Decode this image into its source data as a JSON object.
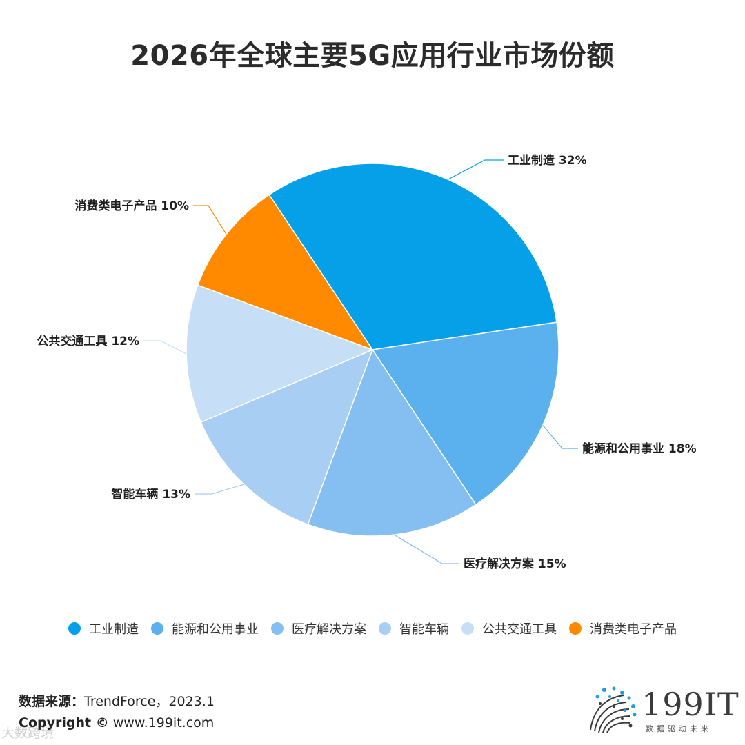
{
  "title": "2026年全球主要5G应用行业市场份额",
  "chart_data": {
    "type": "pie",
    "title": "2026年全球主要5G应用行业市场份额",
    "unit": "%",
    "slices": [
      {
        "label": "工业制造",
        "value": 32,
        "color": "#06A0E9"
      },
      {
        "label": "能源和公用事业",
        "value": 18,
        "color": "#5BB0EE"
      },
      {
        "label": "医疗解决方案",
        "value": 15,
        "color": "#85BFF1"
      },
      {
        "label": "智能车辆",
        "value": 13,
        "color": "#A8CEF4"
      },
      {
        "label": "公共交通工具",
        "value": 12,
        "color": "#C6DFF7"
      },
      {
        "label": "消费类电子产品",
        "value": 10,
        "color": "#FF8A00"
      }
    ],
    "legend_position": "bottom"
  },
  "source": {
    "label": "数据来源：",
    "value": "TrendForce，2023.1"
  },
  "copyright": {
    "label": "Copyright ©",
    "value": "www.199it.com"
  },
  "logo": {
    "text": "199IT",
    "subtitle": "数据驱动未来"
  },
  "watermark": "大数跨境"
}
